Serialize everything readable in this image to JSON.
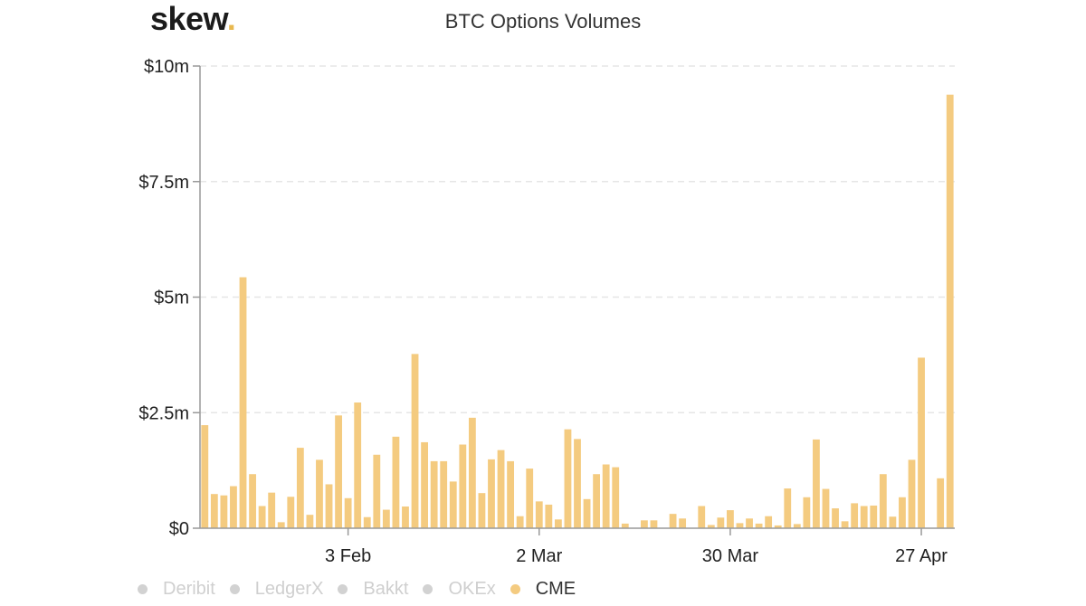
{
  "header": {
    "logo_text": "skew",
    "logo_dot": ".",
    "logo_dot_color": "#e8b84f"
  },
  "chart_data": {
    "type": "bar",
    "title": "BTC Options Volumes",
    "xlabel": "",
    "ylabel": "",
    "ylim": [
      0,
      10000000
    ],
    "y_ticks": [
      {
        "value": 0,
        "label": "$0"
      },
      {
        "value": 2500000,
        "label": "$2.5m"
      },
      {
        "value": 5000000,
        "label": "$5m"
      },
      {
        "value": 7500000,
        "label": "$7.5m"
      },
      {
        "value": 10000000,
        "label": "$10m"
      }
    ],
    "x_ticks": [
      {
        "index": 15,
        "label": "3 Feb"
      },
      {
        "index": 35,
        "label": "2 Mar"
      },
      {
        "index": 55,
        "label": "30 Mar"
      },
      {
        "index": 75,
        "label": "27 Apr"
      }
    ],
    "grid": true,
    "legend_position": "bottom-left",
    "series_color": "#f4cb80",
    "series": [
      {
        "name": "CME",
        "values": [
          2230000,
          740000,
          710000,
          910000,
          5430000,
          1170000,
          480000,
          770000,
          130000,
          680000,
          1740000,
          290000,
          1480000,
          950000,
          2440000,
          650000,
          2720000,
          240000,
          1590000,
          400000,
          1980000,
          470000,
          3770000,
          1860000,
          1450000,
          1450000,
          1010000,
          1810000,
          2390000,
          760000,
          1490000,
          1690000,
          1450000,
          260000,
          1290000,
          580000,
          510000,
          190000,
          2140000,
          1930000,
          630000,
          1170000,
          1380000,
          1320000,
          100000,
          0,
          170000,
          170000,
          0,
          310000,
          210000,
          0,
          480000,
          70000,
          230000,
          390000,
          110000,
          210000,
          100000,
          260000,
          60000,
          860000,
          90000,
          670000,
          1920000,
          850000,
          430000,
          150000,
          540000,
          480000,
          490000,
          1170000,
          250000,
          670000,
          1480000,
          3690000,
          0,
          1080000,
          9380000
        ]
      }
    ]
  },
  "legend": {
    "items": [
      {
        "label": "Deribit",
        "color": "#d2d2d2",
        "active": false
      },
      {
        "label": "LedgerX",
        "color": "#d2d2d2",
        "active": false
      },
      {
        "label": "Bakkt",
        "color": "#d2d2d2",
        "active": false
      },
      {
        "label": "OKEx",
        "color": "#d2d2d2",
        "active": false
      },
      {
        "label": "CME",
        "color": "#f4cb80",
        "active": true
      }
    ]
  }
}
